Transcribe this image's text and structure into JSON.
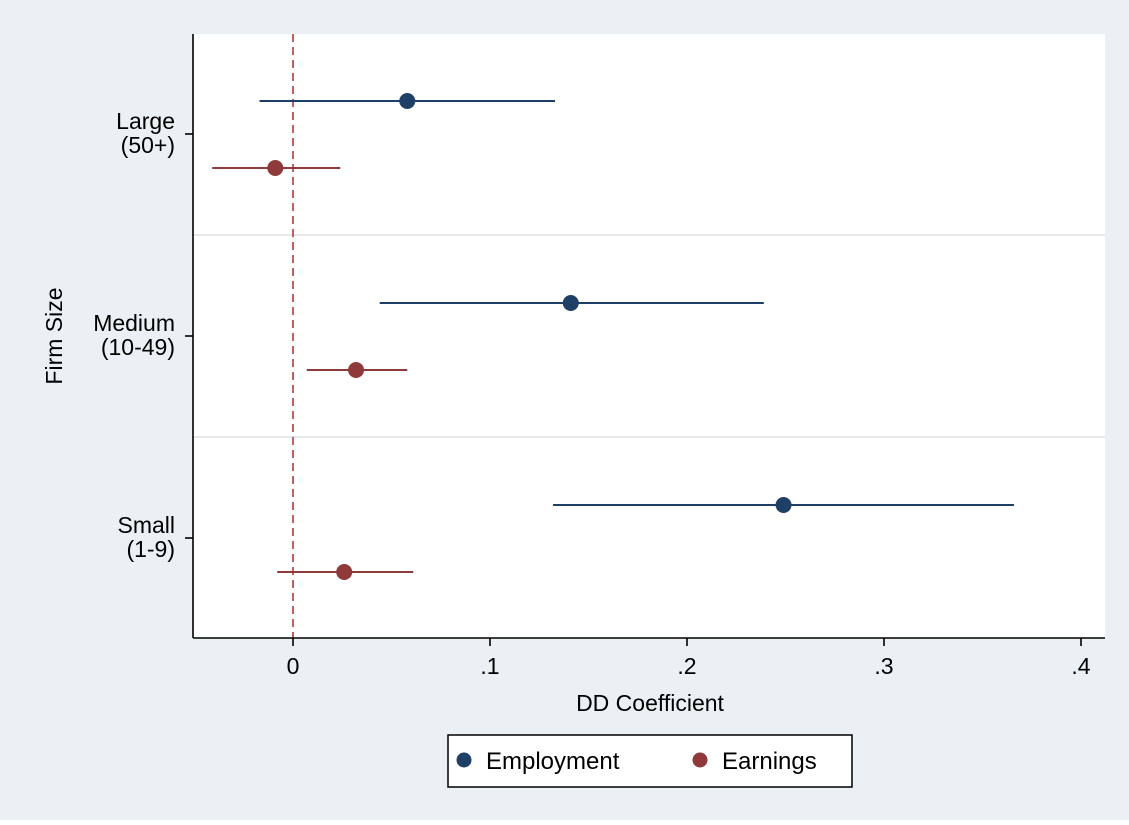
{
  "chart_data": {
    "type": "scatter",
    "subtype": "coefficient-plot",
    "xlabel": "DD Coefficient",
    "ylabel": "Firm Size",
    "xlim": [
      -0.05,
      0.41
    ],
    "x_ticks": [
      0,
      0.1,
      0.2,
      0.3,
      0.4
    ],
    "x_tick_labels": [
      "0",
      ".1",
      ".2",
      ".3",
      ".4"
    ],
    "reference_line": {
      "x": 0,
      "style": "dashed",
      "color": "#b03a3a"
    },
    "grid": "horizontal separators between groups",
    "categories": [
      {
        "name": "Large",
        "label_lines": [
          "Large",
          "(50+)"
        ]
      },
      {
        "name": "Medium",
        "label_lines": [
          "Medium",
          "(10-49)"
        ]
      },
      {
        "name": "Small",
        "label_lines": [
          "Small",
          "(1-9)"
        ]
      }
    ],
    "series": [
      {
        "name": "Employment",
        "color": "#1f3f66",
        "estimates": [
          0.058,
          0.141,
          0.249
        ],
        "ci_low": [
          -0.017,
          0.044,
          0.132
        ],
        "ci_high": [
          0.133,
          0.239,
          0.366
        ]
      },
      {
        "name": "Earnings",
        "color": "#8f3a3a",
        "estimates": [
          -0.009,
          0.032,
          0.026
        ],
        "ci_low": [
          -0.041,
          0.007,
          -0.008
        ],
        "ci_high": [
          0.024,
          0.058,
          0.061
        ]
      }
    ],
    "legend": {
      "placement": "bottom",
      "entries": [
        "Employment",
        "Earnings"
      ]
    }
  }
}
